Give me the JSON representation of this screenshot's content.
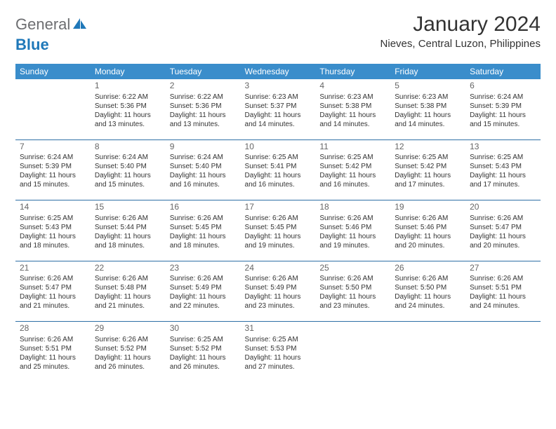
{
  "brand": {
    "general": "General",
    "blue": "Blue"
  },
  "title": {
    "month": "January 2024",
    "location": "Nieves, Central Luzon, Philippines"
  },
  "colors": {
    "header_bg": "#3a8dcb",
    "header_fg": "#ffffff",
    "rule": "#2e6fa6",
    "text": "#333333",
    "brand_gray": "#6d6e71",
    "brand_blue": "#1f78b9",
    "page_bg": "#ffffff"
  },
  "weekday_labels": [
    "Sunday",
    "Monday",
    "Tuesday",
    "Wednesday",
    "Thursday",
    "Friday",
    "Saturday"
  ],
  "labels": {
    "sunrise": "Sunrise:",
    "sunset": "Sunset:",
    "daylight": "Daylight:"
  },
  "weeks": [
    [
      null,
      {
        "n": "1",
        "sr": "6:22 AM",
        "ss": "5:36 PM",
        "dl1": "11 hours",
        "dl2": "and 13 minutes."
      },
      {
        "n": "2",
        "sr": "6:22 AM",
        "ss": "5:36 PM",
        "dl1": "11 hours",
        "dl2": "and 13 minutes."
      },
      {
        "n": "3",
        "sr": "6:23 AM",
        "ss": "5:37 PM",
        "dl1": "11 hours",
        "dl2": "and 14 minutes."
      },
      {
        "n": "4",
        "sr": "6:23 AM",
        "ss": "5:38 PM",
        "dl1": "11 hours",
        "dl2": "and 14 minutes."
      },
      {
        "n": "5",
        "sr": "6:23 AM",
        "ss": "5:38 PM",
        "dl1": "11 hours",
        "dl2": "and 14 minutes."
      },
      {
        "n": "6",
        "sr": "6:24 AM",
        "ss": "5:39 PM",
        "dl1": "11 hours",
        "dl2": "and 15 minutes."
      }
    ],
    [
      {
        "n": "7",
        "sr": "6:24 AM",
        "ss": "5:39 PM",
        "dl1": "11 hours",
        "dl2": "and 15 minutes."
      },
      {
        "n": "8",
        "sr": "6:24 AM",
        "ss": "5:40 PM",
        "dl1": "11 hours",
        "dl2": "and 15 minutes."
      },
      {
        "n": "9",
        "sr": "6:24 AM",
        "ss": "5:40 PM",
        "dl1": "11 hours",
        "dl2": "and 16 minutes."
      },
      {
        "n": "10",
        "sr": "6:25 AM",
        "ss": "5:41 PM",
        "dl1": "11 hours",
        "dl2": "and 16 minutes."
      },
      {
        "n": "11",
        "sr": "6:25 AM",
        "ss": "5:42 PM",
        "dl1": "11 hours",
        "dl2": "and 16 minutes."
      },
      {
        "n": "12",
        "sr": "6:25 AM",
        "ss": "5:42 PM",
        "dl1": "11 hours",
        "dl2": "and 17 minutes."
      },
      {
        "n": "13",
        "sr": "6:25 AM",
        "ss": "5:43 PM",
        "dl1": "11 hours",
        "dl2": "and 17 minutes."
      }
    ],
    [
      {
        "n": "14",
        "sr": "6:25 AM",
        "ss": "5:43 PM",
        "dl1": "11 hours",
        "dl2": "and 18 minutes."
      },
      {
        "n": "15",
        "sr": "6:26 AM",
        "ss": "5:44 PM",
        "dl1": "11 hours",
        "dl2": "and 18 minutes."
      },
      {
        "n": "16",
        "sr": "6:26 AM",
        "ss": "5:45 PM",
        "dl1": "11 hours",
        "dl2": "and 18 minutes."
      },
      {
        "n": "17",
        "sr": "6:26 AM",
        "ss": "5:45 PM",
        "dl1": "11 hours",
        "dl2": "and 19 minutes."
      },
      {
        "n": "18",
        "sr": "6:26 AM",
        "ss": "5:46 PM",
        "dl1": "11 hours",
        "dl2": "and 19 minutes."
      },
      {
        "n": "19",
        "sr": "6:26 AM",
        "ss": "5:46 PM",
        "dl1": "11 hours",
        "dl2": "and 20 minutes."
      },
      {
        "n": "20",
        "sr": "6:26 AM",
        "ss": "5:47 PM",
        "dl1": "11 hours",
        "dl2": "and 20 minutes."
      }
    ],
    [
      {
        "n": "21",
        "sr": "6:26 AM",
        "ss": "5:47 PM",
        "dl1": "11 hours",
        "dl2": "and 21 minutes."
      },
      {
        "n": "22",
        "sr": "6:26 AM",
        "ss": "5:48 PM",
        "dl1": "11 hours",
        "dl2": "and 21 minutes."
      },
      {
        "n": "23",
        "sr": "6:26 AM",
        "ss": "5:49 PM",
        "dl1": "11 hours",
        "dl2": "and 22 minutes."
      },
      {
        "n": "24",
        "sr": "6:26 AM",
        "ss": "5:49 PM",
        "dl1": "11 hours",
        "dl2": "and 23 minutes."
      },
      {
        "n": "25",
        "sr": "6:26 AM",
        "ss": "5:50 PM",
        "dl1": "11 hours",
        "dl2": "and 23 minutes."
      },
      {
        "n": "26",
        "sr": "6:26 AM",
        "ss": "5:50 PM",
        "dl1": "11 hours",
        "dl2": "and 24 minutes."
      },
      {
        "n": "27",
        "sr": "6:26 AM",
        "ss": "5:51 PM",
        "dl1": "11 hours",
        "dl2": "and 24 minutes."
      }
    ],
    [
      {
        "n": "28",
        "sr": "6:26 AM",
        "ss": "5:51 PM",
        "dl1": "11 hours",
        "dl2": "and 25 minutes."
      },
      {
        "n": "29",
        "sr": "6:26 AM",
        "ss": "5:52 PM",
        "dl1": "11 hours",
        "dl2": "and 26 minutes."
      },
      {
        "n": "30",
        "sr": "6:25 AM",
        "ss": "5:52 PM",
        "dl1": "11 hours",
        "dl2": "and 26 minutes."
      },
      {
        "n": "31",
        "sr": "6:25 AM",
        "ss": "5:53 PM",
        "dl1": "11 hours",
        "dl2": "and 27 minutes."
      },
      null,
      null,
      null
    ]
  ]
}
